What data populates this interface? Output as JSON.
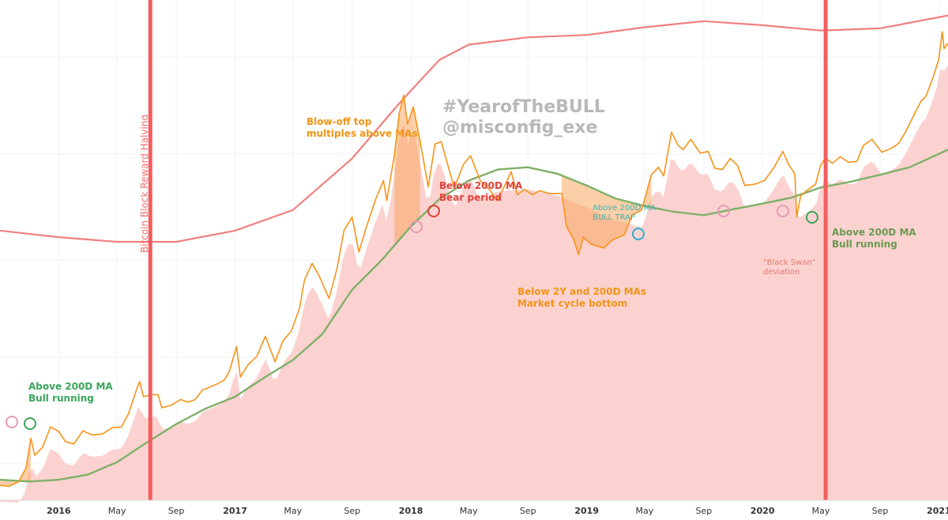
{
  "chart_data": {
    "type": "line",
    "xlabel": "",
    "ylabel": "",
    "y_scale": "log",
    "grid": true,
    "x_ticks": [
      {
        "label": "2016",
        "date": "2016-01-01",
        "bold": true
      },
      {
        "label": "May",
        "date": "2016-05-01",
        "bold": false
      },
      {
        "label": "Sep",
        "date": "2016-09-01",
        "bold": false
      },
      {
        "label": "2017",
        "date": "2017-01-01",
        "bold": true
      },
      {
        "label": "May",
        "date": "2017-05-01",
        "bold": false
      },
      {
        "label": "Sep",
        "date": "2017-09-01",
        "bold": false
      },
      {
        "label": "2018",
        "date": "2018-01-01",
        "bold": true
      },
      {
        "label": "May",
        "date": "2018-05-01",
        "bold": false
      },
      {
        "label": "Sep",
        "date": "2018-09-01",
        "bold": false
      },
      {
        "label": "2019",
        "date": "2019-01-01",
        "bold": true
      },
      {
        "label": "May",
        "date": "2019-05-01",
        "bold": false
      },
      {
        "label": "Sep",
        "date": "2019-09-01",
        "bold": false
      },
      {
        "label": "2020",
        "date": "2020-01-01",
        "bold": true
      },
      {
        "label": "May",
        "date": "2020-05-01",
        "bold": false
      },
      {
        "label": "Sep",
        "date": "2020-09-01",
        "bold": false
      },
      {
        "label": "2021",
        "date": "2021-01-01",
        "bold": true
      }
    ],
    "x_range": [
      "2015-09-01",
      "2021-01-20"
    ],
    "y_range": [
      200,
      40000
    ],
    "series": [
      {
        "color": "#f7931a",
        "points": [
          [
            "2015-09-01",
            235
          ],
          [
            "2015-09-20",
            232
          ],
          [
            "2015-10-10",
            245
          ],
          [
            "2015-10-25",
            285
          ],
          [
            "2015-11-04",
            400
          ],
          [
            "2015-11-12",
            330
          ],
          [
            "2015-11-28",
            360
          ],
          [
            "2015-12-15",
            455
          ],
          [
            "2016-01-01",
            432
          ],
          [
            "2016-01-15",
            385
          ],
          [
            "2016-02-01",
            375
          ],
          [
            "2016-02-20",
            435
          ],
          [
            "2016-03-10",
            415
          ],
          [
            "2016-04-01",
            420
          ],
          [
            "2016-04-20",
            450
          ],
          [
            "2016-05-10",
            455
          ],
          [
            "2016-05-25",
            530
          ],
          [
            "2016-06-10",
            690
          ],
          [
            "2016-06-17",
            760
          ],
          [
            "2016-06-25",
            640
          ],
          [
            "2016-07-10",
            655
          ],
          [
            "2016-07-25",
            655
          ],
          [
            "2016-08-02",
            565
          ],
          [
            "2016-08-20",
            580
          ],
          [
            "2016-09-10",
            620
          ],
          [
            "2016-09-25",
            602
          ],
          [
            "2016-10-10",
            620
          ],
          [
            "2016-10-25",
            690
          ],
          [
            "2016-11-10",
            715
          ],
          [
            "2016-11-25",
            740
          ],
          [
            "2016-12-10",
            775
          ],
          [
            "2016-12-20",
            850
          ],
          [
            "2017-01-04",
            1130
          ],
          [
            "2017-01-12",
            800
          ],
          [
            "2017-01-28",
            920
          ],
          [
            "2017-02-15",
            1010
          ],
          [
            "2017-03-05",
            1270
          ],
          [
            "2017-03-25",
            950
          ],
          [
            "2017-04-10",
            1200
          ],
          [
            "2017-04-28",
            1350
          ],
          [
            "2017-05-15",
            1750
          ],
          [
            "2017-05-25",
            2400
          ],
          [
            "2017-06-10",
            2900
          ],
          [
            "2017-06-25",
            2500
          ],
          [
            "2017-07-15",
            1950
          ],
          [
            "2017-08-01",
            2750
          ],
          [
            "2017-08-15",
            4200
          ],
          [
            "2017-09-01",
            4900
          ],
          [
            "2017-09-15",
            3300
          ],
          [
            "2017-10-01",
            4400
          ],
          [
            "2017-10-20",
            6000
          ],
          [
            "2017-11-05",
            7400
          ],
          [
            "2017-11-12",
            5900
          ],
          [
            "2017-11-28",
            10000
          ],
          [
            "2017-12-08",
            16000
          ],
          [
            "2017-12-17",
            19500
          ],
          [
            "2017-12-25",
            14000
          ],
          [
            "2018-01-06",
            17100
          ],
          [
            "2018-01-20",
            11600
          ],
          [
            "2018-02-06",
            6900
          ],
          [
            "2018-02-20",
            11200
          ],
          [
            "2018-03-05",
            11500
          ],
          [
            "2018-03-20",
            8600
          ],
          [
            "2018-04-01",
            6800
          ],
          [
            "2018-04-20",
            8900
          ],
          [
            "2018-05-05",
            9800
          ],
          [
            "2018-05-25",
            7400
          ],
          [
            "2018-06-15",
            6600
          ],
          [
            "2018-06-29",
            5900
          ],
          [
            "2018-07-20",
            7400
          ],
          [
            "2018-07-28",
            8200
          ],
          [
            "2018-08-10",
            6300
          ],
          [
            "2018-08-25",
            6700
          ],
          [
            "2018-09-10",
            6300
          ],
          [
            "2018-09-25",
            6600
          ],
          [
            "2018-10-15",
            6400
          ],
          [
            "2018-11-10",
            6400
          ],
          [
            "2018-11-20",
            4400
          ],
          [
            "2018-12-05",
            3800
          ],
          [
            "2018-12-15",
            3200
          ],
          [
            "2018-12-25",
            3900
          ],
          [
            "2019-01-10",
            3600
          ],
          [
            "2019-02-05",
            3450
          ],
          [
            "2019-02-25",
            3800
          ],
          [
            "2019-03-20",
            4000
          ],
          [
            "2019-04-05",
            5000
          ],
          [
            "2019-04-25",
            5300
          ],
          [
            "2019-05-15",
            7900
          ],
          [
            "2019-05-30",
            8600
          ],
          [
            "2019-06-10",
            7800
          ],
          [
            "2019-06-26",
            12800
          ],
          [
            "2019-07-10",
            11000
          ],
          [
            "2019-07-20",
            10500
          ],
          [
            "2019-08-05",
            11800
          ],
          [
            "2019-08-25",
            10100
          ],
          [
            "2019-09-10",
            10300
          ],
          [
            "2019-09-24",
            8500
          ],
          [
            "2019-10-10",
            8400
          ],
          [
            "2019-10-26",
            9500
          ],
          [
            "2019-11-10",
            8800
          ],
          [
            "2019-11-25",
            7000
          ],
          [
            "2019-12-15",
            7100
          ],
          [
            "2020-01-05",
            7400
          ],
          [
            "2020-01-25",
            8600
          ],
          [
            "2020-02-12",
            10300
          ],
          [
            "2020-02-25",
            8800
          ],
          [
            "2020-03-08",
            8000
          ],
          [
            "2020-03-12",
            4900
          ],
          [
            "2020-03-20",
            6200
          ],
          [
            "2020-04-01",
            6600
          ],
          [
            "2020-04-20",
            7100
          ],
          [
            "2020-04-30",
            8700
          ],
          [
            "2020-05-10",
            9600
          ],
          [
            "2020-05-25",
            9000
          ],
          [
            "2020-06-10",
            9700
          ],
          [
            "2020-06-28",
            9100
          ],
          [
            "2020-07-15",
            9200
          ],
          [
            "2020-07-28",
            11000
          ],
          [
            "2020-08-15",
            11800
          ],
          [
            "2020-09-05",
            10200
          ],
          [
            "2020-09-25",
            10700
          ],
          [
            "2020-10-10",
            11300
          ],
          [
            "2020-10-25",
            13000
          ],
          [
            "2020-11-10",
            15500
          ],
          [
            "2020-11-25",
            18200
          ],
          [
            "2020-12-05",
            19200
          ],
          [
            "2020-12-20",
            23800
          ],
          [
            "2021-01-01",
            29300
          ],
          [
            "2021-01-08",
            40000
          ],
          [
            "2021-01-12",
            33000
          ],
          [
            "2021-01-20",
            35000
          ]
        ]
      },
      {
        "color": "#7fb069",
        "points": [
          [
            "2015-09-01",
            250
          ],
          [
            "2015-11-01",
            245
          ],
          [
            "2016-01-01",
            250
          ],
          [
            "2016-03-01",
            265
          ],
          [
            "2016-05-01",
            305
          ],
          [
            "2016-07-01",
            380
          ],
          [
            "2016-09-01",
            470
          ],
          [
            "2016-11-01",
            560
          ],
          [
            "2017-01-01",
            640
          ],
          [
            "2017-03-01",
            790
          ],
          [
            "2017-05-01",
            970
          ],
          [
            "2017-07-01",
            1300
          ],
          [
            "2017-09-01",
            2150
          ],
          [
            "2017-11-01",
            3000
          ],
          [
            "2018-01-01",
            4400
          ],
          [
            "2018-03-01",
            6000
          ],
          [
            "2018-05-01",
            7400
          ],
          [
            "2018-07-01",
            8400
          ],
          [
            "2018-09-01",
            8600
          ],
          [
            "2018-11-01",
            8000
          ],
          [
            "2019-01-01",
            7000
          ],
          [
            "2019-03-01",
            6050
          ],
          [
            "2019-05-01",
            5550
          ],
          [
            "2019-07-01",
            5200
          ],
          [
            "2019-09-01",
            5000
          ],
          [
            "2019-11-01",
            5350
          ],
          [
            "2020-01-01",
            5700
          ],
          [
            "2020-03-01",
            6100
          ],
          [
            "2020-05-01",
            6850
          ],
          [
            "2020-07-01",
            7300
          ],
          [
            "2020-09-01",
            7900
          ],
          [
            "2020-11-01",
            8600
          ],
          [
            "2021-01-20",
            10500
          ]
        ]
      },
      {
        "color": "#f08080",
        "points": [
          [
            "2015-09-01",
            4200
          ],
          [
            "2016-01-01",
            3900
          ],
          [
            "2016-05-01",
            3700
          ],
          [
            "2016-09-01",
            3700
          ],
          [
            "2017-01-01",
            4200
          ],
          [
            "2017-05-01",
            5300
          ],
          [
            "2017-09-01",
            9500
          ],
          [
            "2017-12-01",
            17000
          ],
          [
            "2018-01-01",
            20500
          ],
          [
            "2018-03-01",
            29000
          ],
          [
            "2018-05-01",
            34500
          ],
          [
            "2018-09-01",
            37500
          ],
          [
            "2019-01-01",
            38500
          ],
          [
            "2019-05-01",
            42000
          ],
          [
            "2019-09-01",
            45000
          ],
          [
            "2020-01-01",
            43000
          ],
          [
            "2020-05-01",
            40500
          ],
          [
            "2020-09-01",
            41500
          ],
          [
            "2021-01-20",
            48000
          ]
        ]
      }
    ],
    "halving_lines": [
      "2016-07-09",
      "2020-05-11"
    ],
    "annotations": [
      {
        "lines": [
          "Above 200D MA",
          "Bull running"
        ],
        "color": "#3aa55a"
      },
      {
        "lines": [
          "Blow-off top",
          "multiples above MAs"
        ],
        "color": "#f29416"
      },
      {
        "lines": [
          "Below 200D MA",
          "Bear period"
        ],
        "color": "#e0413b"
      },
      {
        "lines": [
          "Above 200D MA",
          "BULL TRAP"
        ],
        "color": "#3ab4b0"
      },
      {
        "lines": [
          "Below 2Y and 200D MAs",
          "Market cycle bottom"
        ],
        "color": "#f29416"
      },
      {
        "lines": [
          "\"Black Swan\"",
          "deviation"
        ],
        "color": "#e07a70"
      },
      {
        "lines": [
          "Above 200D MA",
          "Bull running"
        ],
        "color": "#6a9a50"
      },
      {
        "lines": [
          "Bitcoin Block Reward Halving"
        ],
        "color": "#f07070"
      }
    ],
    "watermark": [
      "#YearofTheBULL",
      "@misconfig_exe"
    ]
  },
  "colors": {
    "price": "#f7931a",
    "ma200": "#7fb069",
    "ma2y": "#f08080",
    "fill": "#fcd2d0",
    "halving": "#f25d5d"
  }
}
